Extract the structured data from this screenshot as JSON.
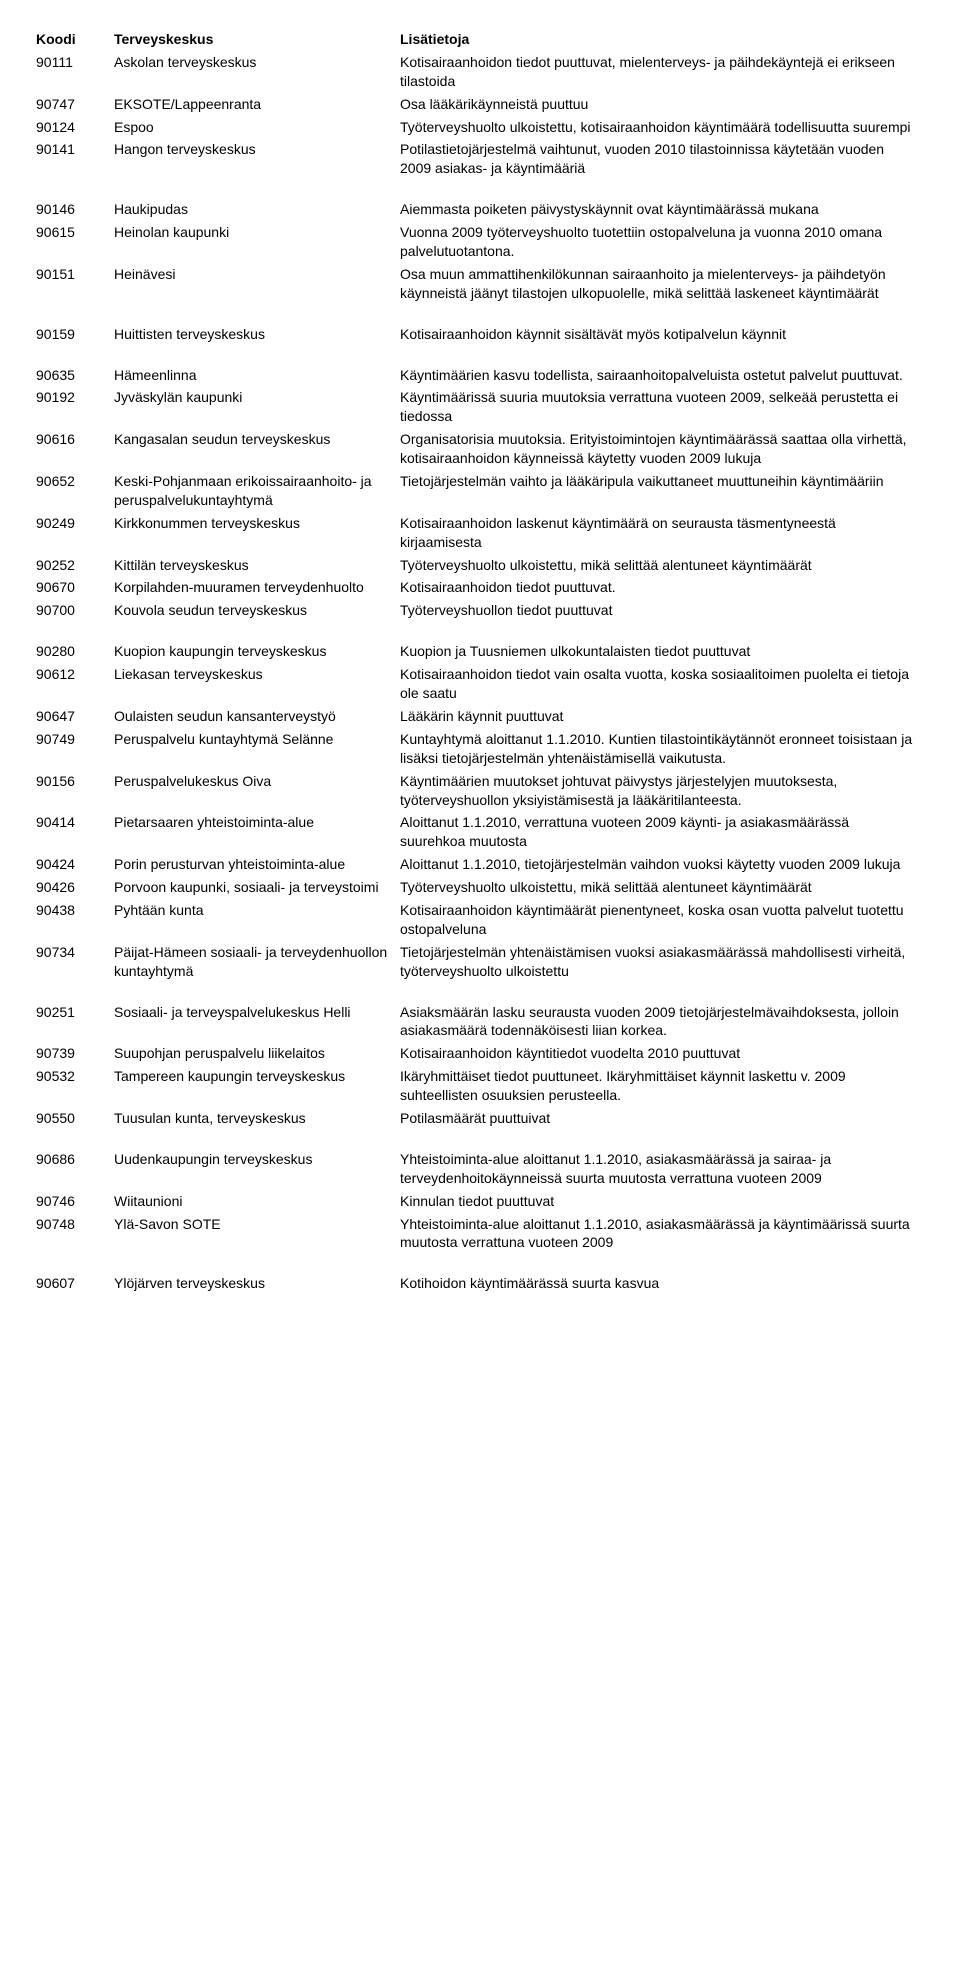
{
  "headers": {
    "koodi": "Koodi",
    "nimi": "Terveyskeskus",
    "info": "Lisätietoja"
  },
  "groups": [
    [
      {
        "koodi": "90111",
        "nimi": "Askolan terveyskeskus",
        "info": "Kotisairaanhoidon tiedot puuttuvat, mielenterveys- ja päihdekäyntejä ei erikseen tilastoida"
      },
      {
        "koodi": "90747",
        "nimi": "EKSOTE/Lappeenranta",
        "info": "Osa lääkärikäynneistä puuttuu"
      },
      {
        "koodi": "90124",
        "nimi": "Espoo",
        "info": "Työterveyshuolto ulkoistettu, kotisairaanhoidon käyntimäärä todellisuutta suurempi"
      },
      {
        "koodi": "90141",
        "nimi": "Hangon terveyskeskus",
        "info": "Potilastietojärjestelmä vaihtunut, vuoden 2010 tilastoinnissa käytetään vuoden 2009 asiakas- ja käyntimääriä"
      }
    ],
    [
      {
        "koodi": "90146",
        "nimi": "Haukipudas",
        "info": "Aiemmasta poiketen päivystyskäynnit ovat käyntimäärässä mukana"
      },
      {
        "koodi": "90615",
        "nimi": "Heinolan kaupunki",
        "info": "Vuonna 2009 työterveyshuolto tuotettiin ostopalveluna ja vuonna 2010 omana palvelutuotantona."
      },
      {
        "koodi": "90151",
        "nimi": "Heinävesi",
        "info": "Osa muun ammattihenkilökunnan sairaanhoito ja mielenterveys- ja päihdetyön käynneistä jäänyt tilastojen ulkopuolelle, mikä selittää laskeneet käyntimäärät"
      }
    ],
    [
      {
        "koodi": "90159",
        "nimi": "Huittisten terveyskeskus",
        "info": "Kotisairaanhoidon käynnit sisältävät myös kotipalvelun käynnit"
      }
    ],
    [
      {
        "koodi": "90635",
        "nimi": "Hämeenlinna",
        "info": "Käyntimäärien kasvu todellista, sairaanhoitopalveluista ostetut palvelut puuttuvat."
      },
      {
        "koodi": "90192",
        "nimi": "Jyväskylän kaupunki",
        "info": "Käyntimäärissä suuria muutoksia verrattuna vuoteen 2009, selkeää perustetta ei tiedossa"
      },
      {
        "koodi": "90616",
        "nimi": "Kangasalan seudun terveyskeskus",
        "info": "Organisatorisia muutoksia. Erityistoimintojen käyntimäärässä saattaa olla virhettä, kotisairaanhoidon käynneissä käytetty vuoden 2009 lukuja"
      },
      {
        "koodi": "90652",
        "nimi": "Keski-Pohjanmaan erikoissairaanhoito- ja peruspalvelukuntayhtymä",
        "info": "Tietojärjestelmän vaihto ja lääkäripula vaikuttaneet muuttuneihin käyntimääriin"
      },
      {
        "koodi": "90249",
        "nimi": "Kirkkonummen terveyskeskus",
        "info": "Kotisairaanhoidon laskenut käyntimäärä on seurausta täsmentyneestä kirjaamisesta"
      },
      {
        "koodi": "90252",
        "nimi": "Kittilän terveyskeskus",
        "info": "Työterveyshuolto ulkoistettu, mikä selittää alentuneet käyntimäärät"
      },
      {
        "koodi": "90670",
        "nimi": "Korpilahden-muuramen terveydenhuolto",
        "info": "Kotisairaanhoidon tiedot puuttuvat."
      },
      {
        "koodi": "90700",
        "nimi": "Kouvola seudun terveyskeskus",
        "info": "Työterveyshuollon tiedot puuttuvat"
      }
    ],
    [
      {
        "koodi": "90280",
        "nimi": "Kuopion kaupungin terveyskeskus",
        "info": "Kuopion ja Tuusniemen ulkokuntalaisten tiedot puuttuvat"
      },
      {
        "koodi": "90612",
        "nimi": "Liekasan terveyskeskus",
        "info": "Kotisairaanhoidon tiedot vain osalta vuotta, koska sosiaalitoimen puolelta ei tietoja ole saatu"
      },
      {
        "koodi": "90647",
        "nimi": "Oulaisten seudun kansanterveystyö",
        "info": "Lääkärin käynnit puuttuvat"
      },
      {
        "koodi": "90749",
        "nimi": "Peruspalvelu kuntayhtymä Selänne",
        "info": "Kuntayhtymä aloittanut 1.1.2010. Kuntien tilastointikäytännöt eronneet toisistaan ja lisäksi tietojärjestelmän yhtenäistämisellä vaikutusta."
      },
      {
        "koodi": "90156",
        "nimi": "Peruspalvelukeskus Oiva",
        "info": "Käyntimäärien muutokset johtuvat päivystys järjestelyjen muutoksesta, työterveyshuollon yksiyistämisestä ja lääkäritilanteesta."
      },
      {
        "koodi": "90414",
        "nimi": "Pietarsaaren yhteistoiminta-alue",
        "info": "Aloittanut 1.1.2010, verrattuna vuoteen 2009 käynti- ja asiakasmäärässä suurehkoa muutosta"
      },
      {
        "koodi": "90424",
        "nimi": "Porin perusturvan yhteistoiminta-alue",
        "info": "Aloittanut 1.1.2010, tietojärjestelmän vaihdon vuoksi käytetty vuoden 2009 lukuja"
      },
      {
        "koodi": "90426",
        "nimi": "Porvoon kaupunki, sosiaali- ja terveystoimi",
        "info": "Työterveyshuolto ulkoistettu, mikä selittää alentuneet käyntimäärät"
      },
      {
        "koodi": "90438",
        "nimi": "Pyhtään kunta",
        "info": "Kotisairaanhoidon käyntimäärät pienentyneet, koska osan vuotta palvelut tuotettu ostopalveluna"
      },
      {
        "koodi": "90734",
        "nimi": "Päijat-Hämeen sosiaali- ja terveydenhuollon kuntayhtymä",
        "info": "Tietojärjestelmän yhtenäistämisen vuoksi asiakasmäärässä mahdollisesti virheitä, työterveyshuolto ulkoistettu"
      }
    ],
    [
      {
        "koodi": "90251",
        "nimi": "Sosiaali- ja terveyspalvelukeskus Helli",
        "info": "Asiaksmäärän lasku seurausta vuoden 2009 tietojärjestelmävaihdoksesta, jolloin asiakasmäärä todennäköisesti liian korkea."
      },
      {
        "koodi": "90739",
        "nimi": "Suupohjan peruspalvelu liikelaitos",
        "info": "Kotisairaanhoidon käyntitiedot vuodelta 2010 puuttuvat"
      },
      {
        "koodi": "90532",
        "nimi": "Tampereen kaupungin terveyskeskus",
        "info": "Ikäryhmittäiset tiedot puuttuneet. Ikäryhmittäiset käynnit laskettu v. 2009 suhteellisten osuuksien perusteella."
      },
      {
        "koodi": "90550",
        "nimi": "Tuusulan kunta, terveyskeskus",
        "info": "Potilasmäärät puuttuivat"
      }
    ],
    [
      {
        "koodi": "90686",
        "nimi": "Uudenkaupungin terveyskeskus",
        "info": "Yhteistoiminta-alue aloittanut 1.1.2010, asiakasmäärässä ja sairaa- ja terveydenhoitokäynneissä suurta muutosta verrattuna vuoteen 2009"
      },
      {
        "koodi": "90746",
        "nimi": "Wiitaunioni",
        "info": "Kinnulan tiedot puuttuvat"
      },
      {
        "koodi": "90748",
        "nimi": "Ylä-Savon SOTE",
        "info": "Yhteistoiminta-alue aloittanut 1.1.2010, asiakasmäärässä ja käyntimäärissä suurta muutosta verrattuna vuoteen 2009"
      }
    ],
    [
      {
        "koodi": "90607",
        "nimi": "Ylöjärven terveyskeskus",
        "info": "Kotihoidon käyntimäärässä suurta kasvua"
      }
    ]
  ]
}
